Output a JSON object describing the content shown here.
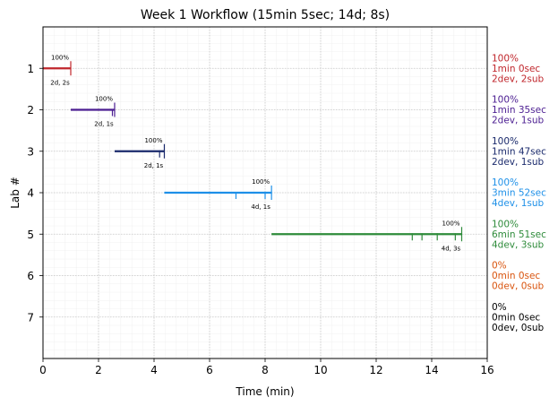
{
  "chart_data": {
    "type": "gantt",
    "title": "Week 1 Workflow (15min 5sec; 14d; 8s)",
    "xlabel": "Time (min)",
    "ylabel": "Lab #",
    "xlim": [
      0,
      16
    ],
    "ylim": [
      0,
      8
    ],
    "y_inverted": true,
    "grid": true,
    "x_ticks": [
      0,
      2,
      4,
      6,
      8,
      10,
      12,
      14,
      16
    ],
    "y_ticks": [
      1,
      2,
      3,
      4,
      5,
      6,
      7
    ],
    "labs": [
      {
        "lab": 1,
        "start": 0.0,
        "end": 1.0,
        "color": "#c0262c",
        "pct_label": "100%",
        "count_label": "2d, 2s",
        "commits": [
          1.0
        ],
        "info": [
          "100%",
          "1min 0sec",
          "2dev, 2sub"
        ]
      },
      {
        "lab": 2,
        "start": 1.0,
        "end": 2.58,
        "color": "#4b1d91",
        "pct_label": "100%",
        "count_label": "2d, 1s",
        "commits": [
          2.5,
          2.58
        ],
        "info": [
          "100%",
          "1min 35sec",
          "2dev, 1sub"
        ]
      },
      {
        "lab": 3,
        "start": 2.58,
        "end": 4.37,
        "color": "#1a2a6c",
        "pct_label": "100%",
        "count_label": "2d, 1s",
        "commits": [
          4.2,
          4.37
        ],
        "info": [
          "100%",
          "1min 47sec",
          "2dev, 1sub"
        ]
      },
      {
        "lab": 4,
        "start": 4.37,
        "end": 8.23,
        "color": "#1e90e8",
        "pct_label": "100%",
        "count_label": "4d, 1s",
        "commits": [
          6.95,
          8.0,
          8.23
        ],
        "info": [
          "100%",
          "3min 52sec",
          "4dev, 1sub"
        ]
      },
      {
        "lab": 5,
        "start": 8.23,
        "end": 15.08,
        "color": "#2e8b3a",
        "pct_label": "100%",
        "count_label": "4d, 3s",
        "commits": [
          13.3,
          13.65,
          14.2,
          14.85,
          15.08
        ],
        "info": [
          "100%",
          "6min 51sec",
          "4dev, 3sub"
        ]
      },
      {
        "lab": 6,
        "start": null,
        "end": null,
        "color": "#d9540e",
        "pct_label": "",
        "count_label": "",
        "commits": [],
        "info": [
          "0%",
          "0min 0sec",
          "0dev, 0sub"
        ]
      },
      {
        "lab": 7,
        "start": null,
        "end": null,
        "color": "#000000",
        "pct_label": "",
        "count_label": "",
        "commits": [],
        "info": [
          "0%",
          "0min 0sec",
          "0dev, 0sub"
        ]
      }
    ]
  }
}
